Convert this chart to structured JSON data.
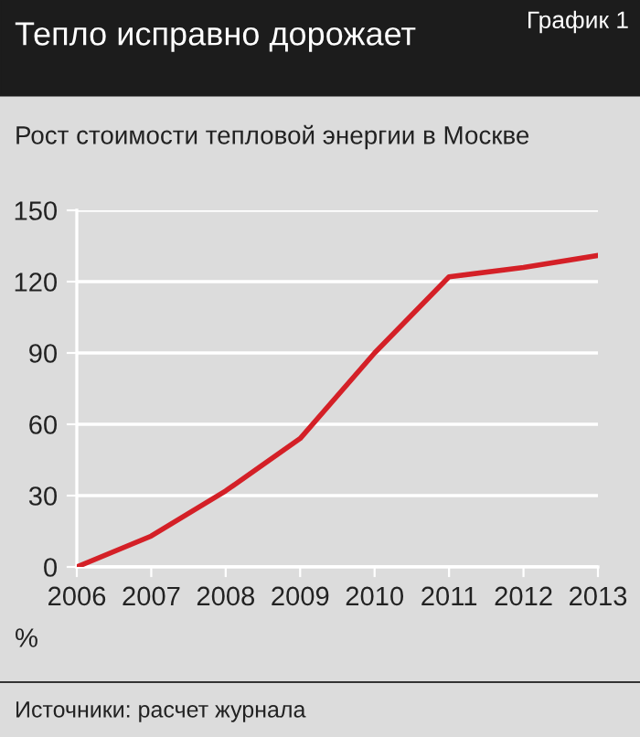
{
  "chart_data": {
    "type": "line",
    "title": "Тепло исправно дорожает",
    "subtitle": "Рост стоимости тепловой энергии в Москве",
    "ylabel": "%",
    "annotations": [
      "График 1",
      "Источники: расчет журнала"
    ],
    "x": [
      2006,
      2007,
      2008,
      2009,
      2010,
      2011,
      2012,
      2013
    ],
    "series": [
      {
        "color": "#d42027",
        "values": [
          0,
          13,
          32,
          54,
          90,
          122,
          126,
          131
        ]
      }
    ],
    "xlim": [
      2006,
      2013
    ],
    "xticks": [
      2006,
      2007,
      2008,
      2009,
      2010,
      2011,
      2012,
      2013
    ],
    "ylim": [
      0,
      150
    ],
    "yticks": [
      0,
      30,
      60,
      90,
      120,
      150
    ],
    "grid": "y",
    "marker": "none",
    "line_style": "solid",
    "legend": false
  }
}
